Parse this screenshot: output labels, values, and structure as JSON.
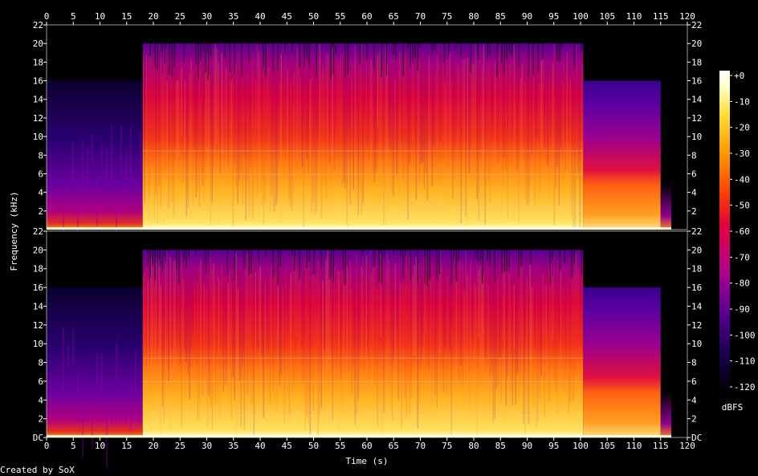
{
  "chart_data": {
    "type": "heatmap",
    "title": "",
    "xlabel": "Time (s)",
    "ylabel": "Frequency (kHz)",
    "x_ticks": [
      "0",
      "5",
      "10",
      "15",
      "20",
      "25",
      "30",
      "35",
      "40",
      "45",
      "50",
      "55",
      "60",
      "65",
      "70",
      "75",
      "80",
      "85",
      "90",
      "95",
      "100",
      "105",
      "110",
      "115",
      "120"
    ],
    "xlim": [
      0,
      120
    ],
    "channels": [
      {
        "y_ticks": [
          "22",
          "20",
          "18",
          "16",
          "14",
          "12",
          "10",
          "8",
          "6",
          "4",
          "2"
        ]
      },
      {
        "y_ticks": [
          "22",
          "20",
          "18",
          "16",
          "14",
          "12",
          "10",
          "8",
          "6",
          "4",
          "2",
          "DC"
        ]
      }
    ],
    "ylim_khz": [
      0,
      22
    ],
    "colorbar": {
      "label": "dBFS",
      "ticks": [
        "+0",
        "-10",
        "-20",
        "-30",
        "-40",
        "-50",
        "-60",
        "-70",
        "-80",
        "-90",
        "-100",
        "-110",
        "-120"
      ],
      "range_db": [
        -120,
        0
      ]
    },
    "segments": [
      {
        "start_s": 0,
        "end_s": 18,
        "cutoff_khz": 16,
        "level": "quiet"
      },
      {
        "start_s": 18,
        "end_s": 100.5,
        "cutoff_khz": 20,
        "level": "loud"
      },
      {
        "start_s": 100.5,
        "end_s": 115,
        "cutoff_khz": 16,
        "level": "medium"
      },
      {
        "start_s": 115,
        "end_s": 117,
        "cutoff_khz": 5,
        "level": "fade"
      }
    ],
    "colors": [
      "#000000",
      "#1a0050",
      "#5b0096",
      "#b4008c",
      "#e6003c",
      "#ff4000",
      "#ff9600",
      "#ffdc32",
      "#ffffc8",
      "#ffffff"
    ]
  },
  "footer": {
    "credit": "Created by SoX"
  }
}
